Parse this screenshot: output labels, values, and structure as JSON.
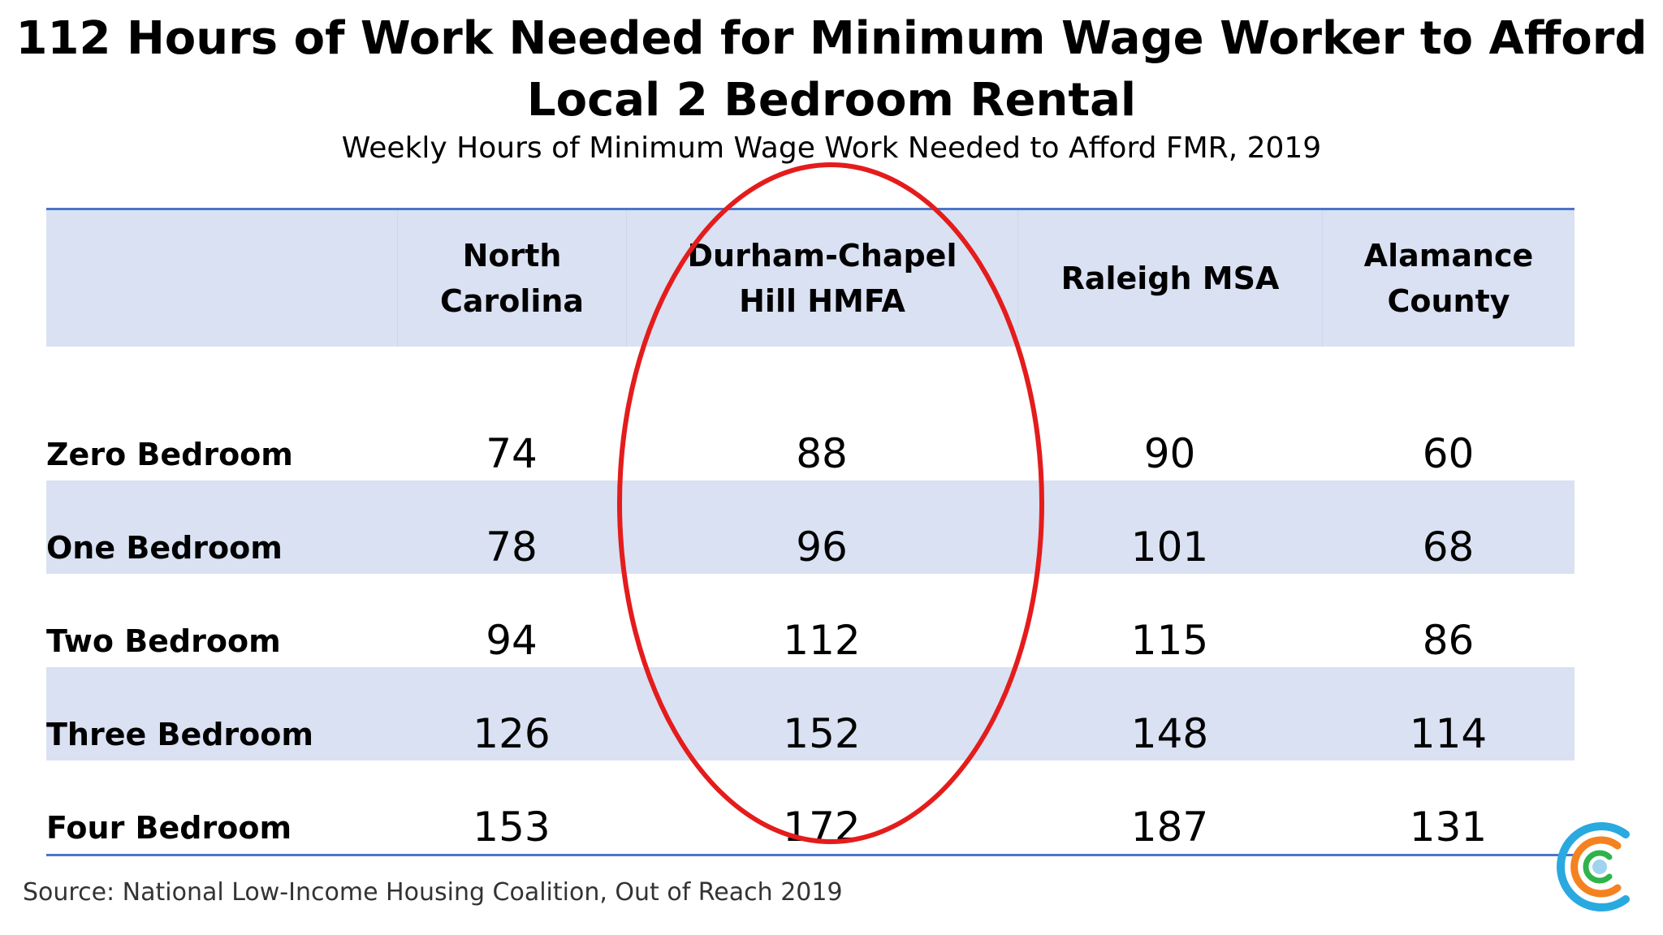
{
  "title": "112 Hours of Work Needed for Minimum Wage Worker to Afford Local 2 Bedroom Rental",
  "subtitle": "Weekly Hours of Minimum Wage Work Needed to Afford FMR, 2019",
  "source": "Source: National Low-Income Housing Coalition, Out of Reach 2019",
  "colors": {
    "header_fill": "#d9e1f2",
    "rule": "#4a76c8",
    "highlight_ellipse": "#e41c1c",
    "logo_blue": "#29a9e0",
    "logo_orange": "#f58220",
    "logo_green": "#2fb34a"
  },
  "chart_data": {
    "type": "table",
    "columns": [
      "",
      "North Carolina",
      "Durham-Chapel Hill HMFA",
      "Raleigh MSA",
      "Alamance County"
    ],
    "header_lines": [
      [],
      [
        "North",
        "Carolina"
      ],
      [
        "Durham-Chapel",
        "Hill HMFA"
      ],
      [
        "Raleigh MSA"
      ],
      [
        "Alamance",
        "County"
      ]
    ],
    "rows": [
      {
        "label": "Zero Bedroom",
        "values": [
          74,
          88,
          90,
          60
        ]
      },
      {
        "label": "One Bedroom",
        "values": [
          78,
          96,
          101,
          68
        ]
      },
      {
        "label": "Two Bedroom",
        "values": [
          94,
          112,
          115,
          86
        ]
      },
      {
        "label": "Three Bedroom",
        "values": [
          126,
          152,
          148,
          114
        ]
      },
      {
        "label": "Four Bedroom",
        "values": [
          153,
          172,
          187,
          131
        ]
      }
    ],
    "highlighted_column": "Durham-Chapel Hill HMFA"
  }
}
